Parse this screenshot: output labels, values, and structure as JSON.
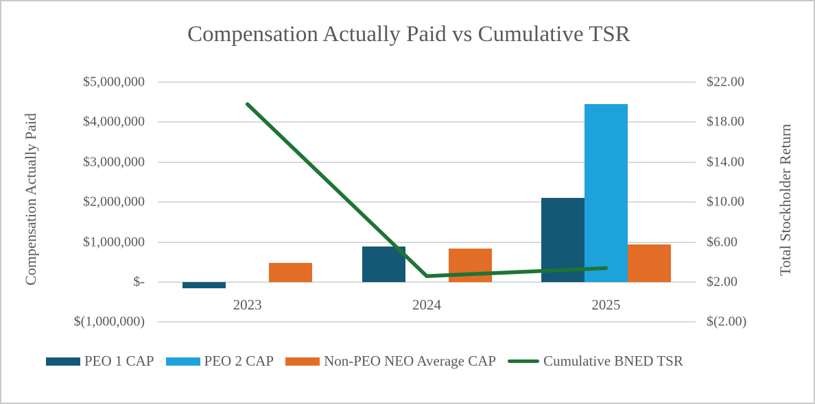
{
  "chart_data": {
    "type": "combo_bar_line",
    "title": "Compensation Actually Paid vs Cumulative TSR",
    "categories": [
      "2023",
      "2024",
      "2025"
    ],
    "bar_series": [
      {
        "name": "PEO 1 CAP",
        "color": "#155876",
        "values": [
          -160000,
          890000,
          2100000
        ]
      },
      {
        "name": "PEO 2 CAP",
        "color": "#1ea2dc",
        "values": [
          null,
          null,
          4450000
        ]
      },
      {
        "name": "Non-PEO NEO Average CAP",
        "color": "#e26d26",
        "values": [
          480000,
          840000,
          950000
        ]
      }
    ],
    "line_series": {
      "name": "Cumulative BNED TSR",
      "color": "#1e7434",
      "axis": "right",
      "values": [
        19.8,
        2.6,
        3.4
      ]
    },
    "left_axis": {
      "title": "Compensation Actually Paid",
      "min": -1000000,
      "max": 5000000,
      "tick_step": 1000000,
      "tick_labels": [
        "$5,000,000",
        "$4,000,000",
        "$3,000,000",
        "$2,000,000",
        "$1,000,000",
        "$-",
        "$(1,000,000)"
      ]
    },
    "right_axis": {
      "title": "Total Stockholder Return",
      "min": -2.0,
      "max": 22.0,
      "tick_step": 4.0,
      "tick_labels": [
        "$22.00",
        "$18.00",
        "$14.00",
        "$10.00",
        "$6.00",
        "$2.00",
        "$(2.00)"
      ]
    },
    "grid": true,
    "legend_position": "bottom",
    "colors": {
      "text": "#595959",
      "gridline": "#d9d9d9",
      "border": "#c9c9c9",
      "background": "#ffffff"
    }
  }
}
